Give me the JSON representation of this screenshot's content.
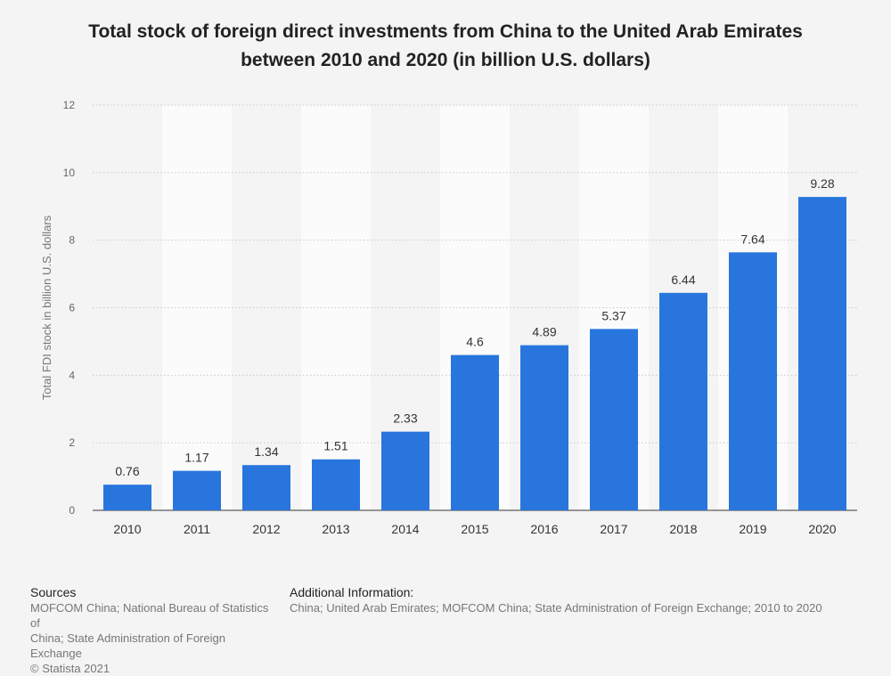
{
  "title_line1": "Total stock of foreign direct investments from China to the United Arab Emirates",
  "title_line2": "between 2010 and 2020 (in billion U.S. dollars)",
  "colors": {
    "bar": "#2876dd",
    "band": "#fbfbfb",
    "grid": "#c8c8c8",
    "background": "#f4f4f4"
  },
  "chart_data": {
    "type": "bar",
    "title": "Total stock of foreign direct investments from China to the United Arab Emirates between 2010 and 2020 (in billion U.S. dollars)",
    "categories": [
      "2010",
      "2011",
      "2012",
      "2013",
      "2014",
      "2015",
      "2016",
      "2017",
      "2018",
      "2019",
      "2020"
    ],
    "values": [
      0.76,
      1.17,
      1.34,
      1.51,
      2.33,
      4.6,
      4.89,
      5.37,
      6.44,
      7.64,
      9.28
    ],
    "value_labels": [
      "0.76",
      "1.17",
      "1.34",
      "1.51",
      "2.33",
      "4.6",
      "4.89",
      "5.37",
      "6.44",
      "7.64",
      "9.28"
    ],
    "xlabel": "",
    "ylabel": "Total FDI stock in billion U.S. dollars",
    "ylim": [
      0,
      12
    ],
    "yticks": [
      0,
      2,
      4,
      6,
      8,
      10,
      12
    ],
    "ytick_labels": [
      "0",
      "2",
      "4",
      "6",
      "8",
      "10",
      "12"
    ],
    "grid": true
  },
  "footer": {
    "sources_heading": "Sources",
    "sources_lines": [
      "MOFCOM China; National Bureau of Statistics of",
      "China; State Administration of Foreign Exchange",
      "© Statista 2021"
    ],
    "addinfo_heading": "Additional Information:",
    "addinfo_text": "China; United Arab Emirates; MOFCOM China; State Administration of Foreign Exchange; 2010 to 2020"
  }
}
